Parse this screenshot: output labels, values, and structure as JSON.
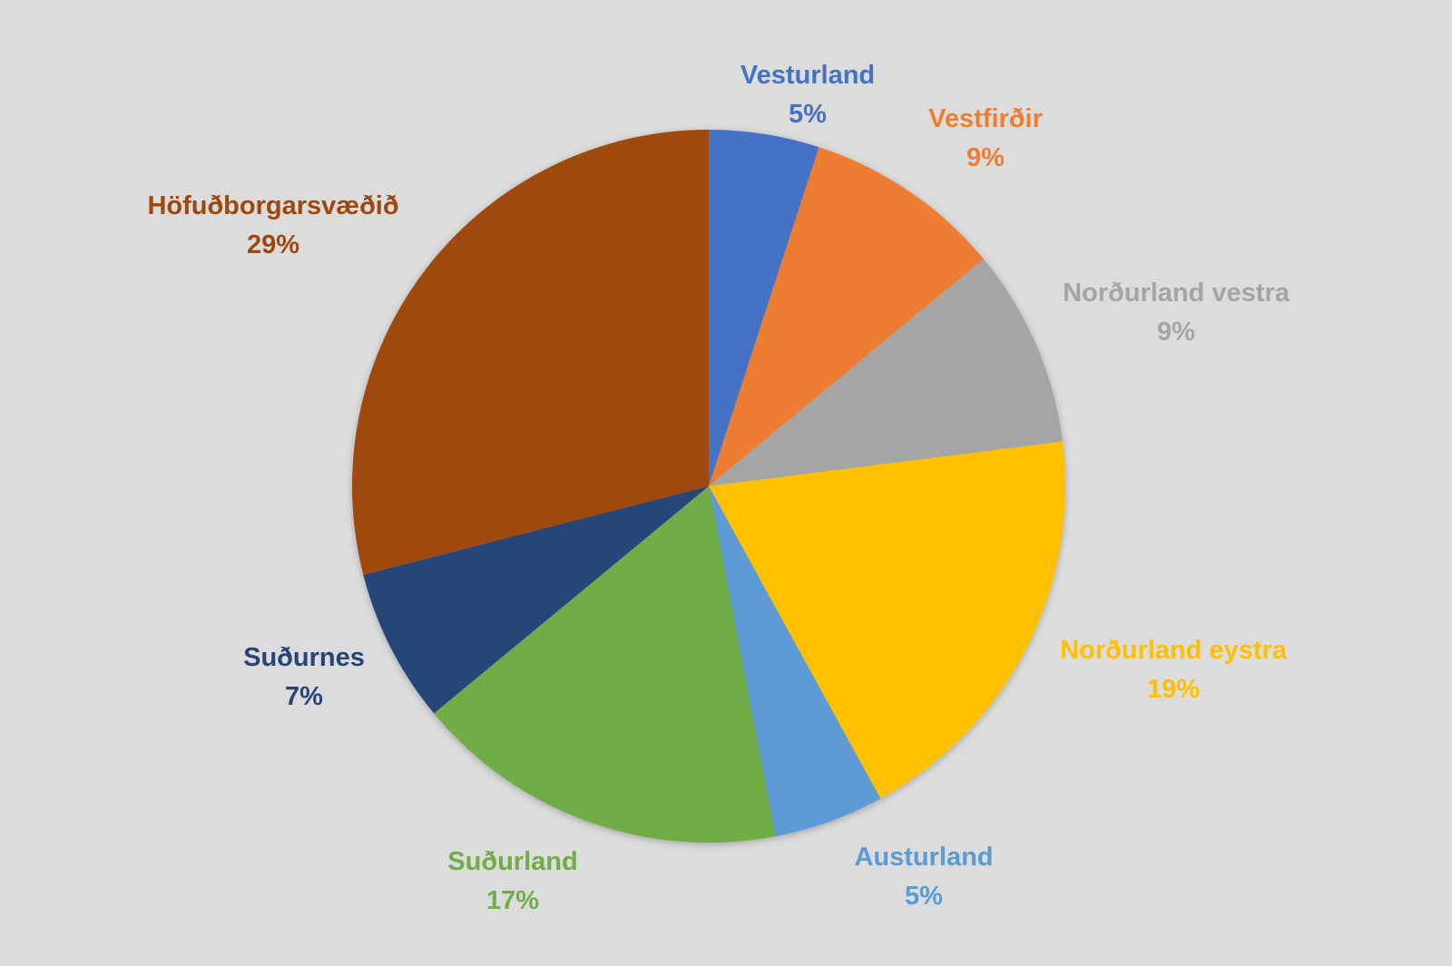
{
  "chart_data": {
    "type": "pie",
    "title": "",
    "start": "top",
    "direction": "clockwise",
    "slices": [
      {
        "label": "Vesturland",
        "value": 5,
        "display": "5%",
        "color": "#4472C4"
      },
      {
        "label": "Vestfirðir",
        "value": 9,
        "display": "9%",
        "color": "#ED7D31"
      },
      {
        "label": "Norðurland vestra",
        "value": 9,
        "display": "9%",
        "color": "#A5A5A5"
      },
      {
        "label": "Norðurland eystra",
        "value": 19,
        "display": "19%",
        "color": "#FFC000"
      },
      {
        "label": "Austurland",
        "value": 5,
        "display": "5%",
        "color": "#5B9BD5"
      },
      {
        "label": "Suðurland",
        "value": 17,
        "display": "17%",
        "color": "#70AD47"
      },
      {
        "label": "Suðurnes",
        "value": 7,
        "display": "7%",
        "color": "#264478"
      },
      {
        "label": "Höfuðborgarsvæðið",
        "value": 29,
        "display": "29%",
        "color": "#9E480E"
      }
    ],
    "background": "#DCDCDC"
  }
}
